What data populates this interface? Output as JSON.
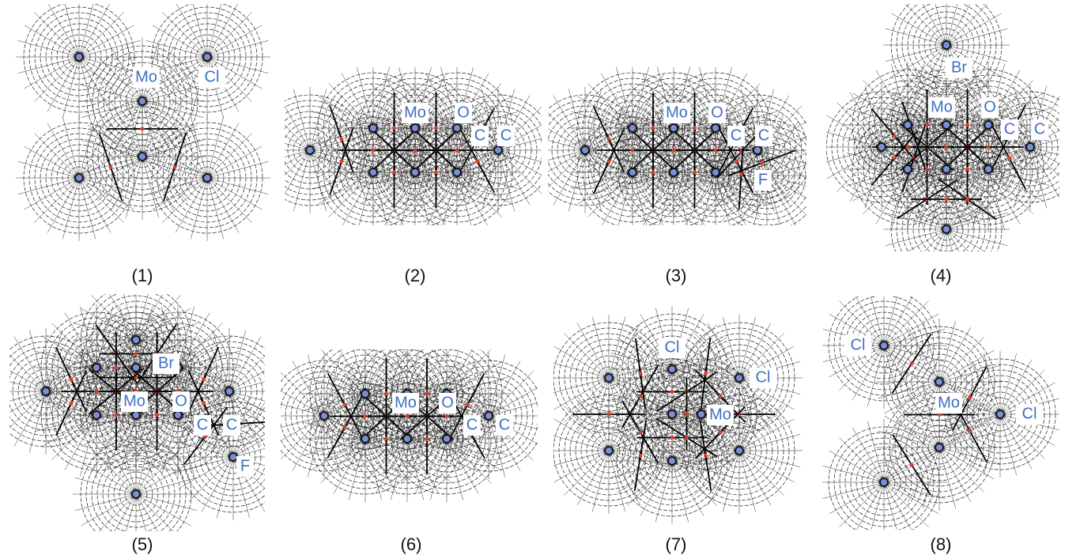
{
  "panels": [
    {
      "caption": "(1)",
      "labels": [
        "Mo",
        "Cl"
      ]
    },
    {
      "caption": "(2)",
      "labels": [
        "Mo",
        "O",
        "C",
        "C"
      ]
    },
    {
      "caption": "(3)",
      "labels": [
        "Mo",
        "O",
        "C",
        "C",
        "F"
      ]
    },
    {
      "caption": "(4)",
      "labels": [
        "Br",
        "Mo",
        "O",
        "C",
        "C"
      ]
    },
    {
      "caption": "(5)",
      "labels": [
        "Br",
        "Mo",
        "O",
        "C",
        "C",
        "F"
      ]
    },
    {
      "caption": "(6)",
      "labels": [
        "Mo",
        "O",
        "C",
        "C"
      ]
    },
    {
      "caption": "(7)",
      "labels": [
        "Cl",
        "Cl",
        "Mo"
      ]
    },
    {
      "caption": "(8)",
      "labels": [
        "Cl",
        "Mo",
        "Cl"
      ]
    }
  ]
}
